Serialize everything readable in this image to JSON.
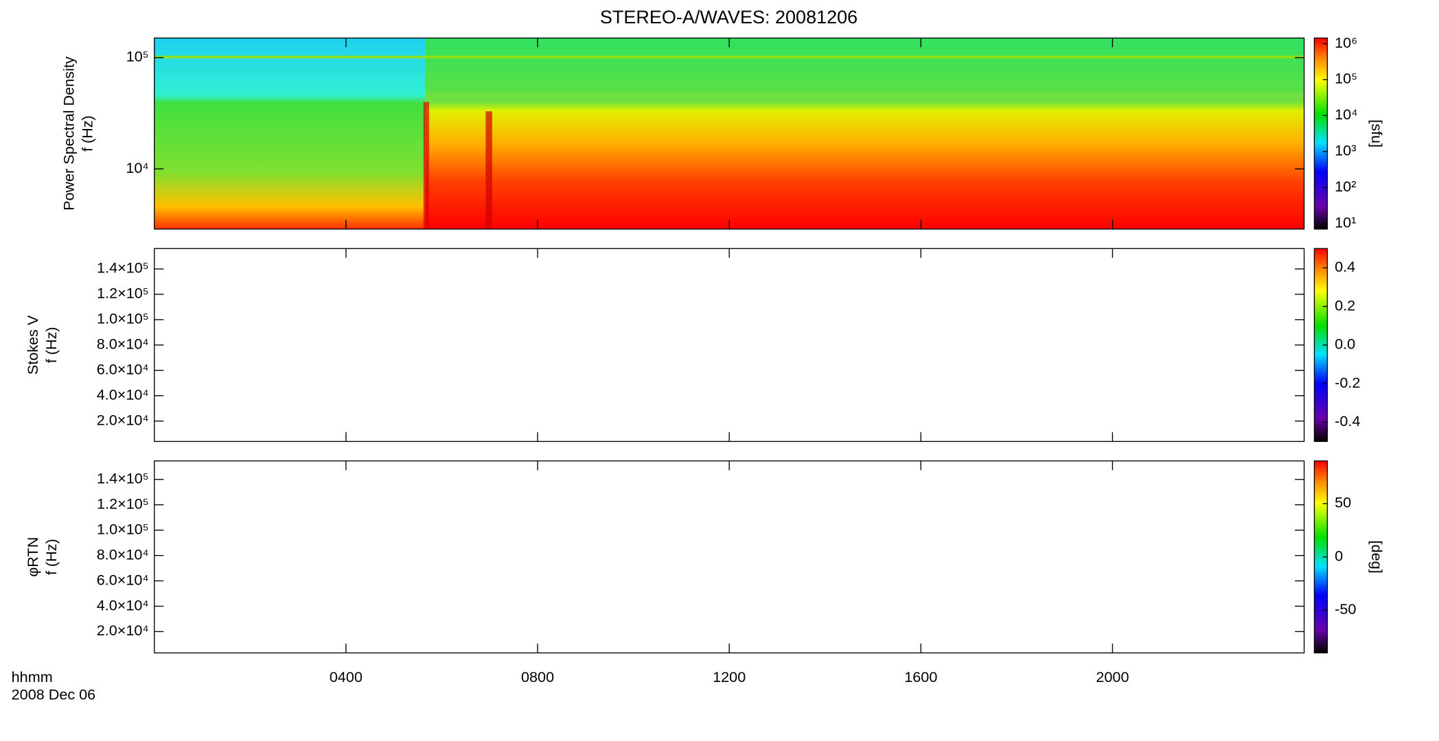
{
  "title": "STEREO-A/WAVES: 20081206",
  "x_label": "hhmm",
  "date_label": "2008 Dec 06",
  "xlim": [
    0,
    1440
  ],
  "xticks": [
    {
      "value": 240,
      "label": "0400"
    },
    {
      "value": 480,
      "label": "0800"
    },
    {
      "value": 720,
      "label": "1200"
    },
    {
      "value": 960,
      "label": "1600"
    },
    {
      "value": 1200,
      "label": "2000"
    }
  ],
  "chart_data": [
    {
      "type": "spectrogram",
      "y_label": [
        "Power Spectral Density",
        "f (Hz)"
      ],
      "log_y": true,
      "ylim": [
        2880,
        150000
      ],
      "yticks": [
        {
          "value": 10000,
          "label": "10⁴"
        },
        {
          "value": 100000,
          "label": "10⁵"
        }
      ],
      "colorbar": {
        "label": "[sfu]",
        "log": true,
        "lim": [
          7,
          1430000
        ],
        "ticks": [
          {
            "value": 10,
            "label": "10¹"
          },
          {
            "value": 100,
            "label": "10²"
          },
          {
            "value": 1000,
            "label": "10³"
          },
          {
            "value": 10000,
            "label": "10⁴"
          },
          {
            "value": 100000,
            "label": "10⁵"
          },
          {
            "value": 1000000,
            "label": "10⁶"
          }
        ]
      }
    },
    {
      "type": "spectrogram",
      "y_label": [
        "Stokes V",
        "f (Hz)"
      ],
      "log_y": false,
      "ylim": [
        3900,
        156100
      ],
      "yticks": [
        {
          "value": 20000,
          "label": "2.0×10⁴"
        },
        {
          "value": 40000,
          "label": "4.0×10⁴"
        },
        {
          "value": 60000,
          "label": "6.0×10⁴"
        },
        {
          "value": 80000,
          "label": "8.0×10⁴"
        },
        {
          "value": 100000,
          "label": "1.0×10⁵"
        },
        {
          "value": 120000,
          "label": "1.2×10⁵"
        },
        {
          "value": 140000,
          "label": "1.4×10⁵"
        }
      ],
      "colorbar": {
        "log": false,
        "lim": [
          -0.5,
          0.5
        ],
        "ticks": [
          -0.4,
          -0.2,
          {
            "value": 0,
            "label": "0.0"
          },
          0.2,
          0.4
        ]
      }
    },
    {
      "type": "spectrogram",
      "y_label": [
        "φRTN",
        "f (Hz)"
      ],
      "log_y": false,
      "ylim": [
        3170,
        154600
      ],
      "yticks": [
        {
          "value": 20000,
          "label": "2.0×10⁴"
        },
        {
          "value": 40000,
          "label": "4.0×10⁴"
        },
        {
          "value": 60000,
          "label": "6.0×10⁴"
        },
        {
          "value": 80000,
          "label": "8.0×10⁴"
        },
        {
          "value": 100000,
          "label": "1.0×10⁵"
        },
        {
          "value": 120000,
          "label": "1.2×10⁵"
        },
        {
          "value": 140000,
          "label": "1.4×10⁵"
        }
      ],
      "colorbar": {
        "label": "[deg]",
        "log": false,
        "lim": [
          -90,
          90
        ],
        "ticks": [
          -50,
          0,
          50
        ]
      }
    }
  ]
}
